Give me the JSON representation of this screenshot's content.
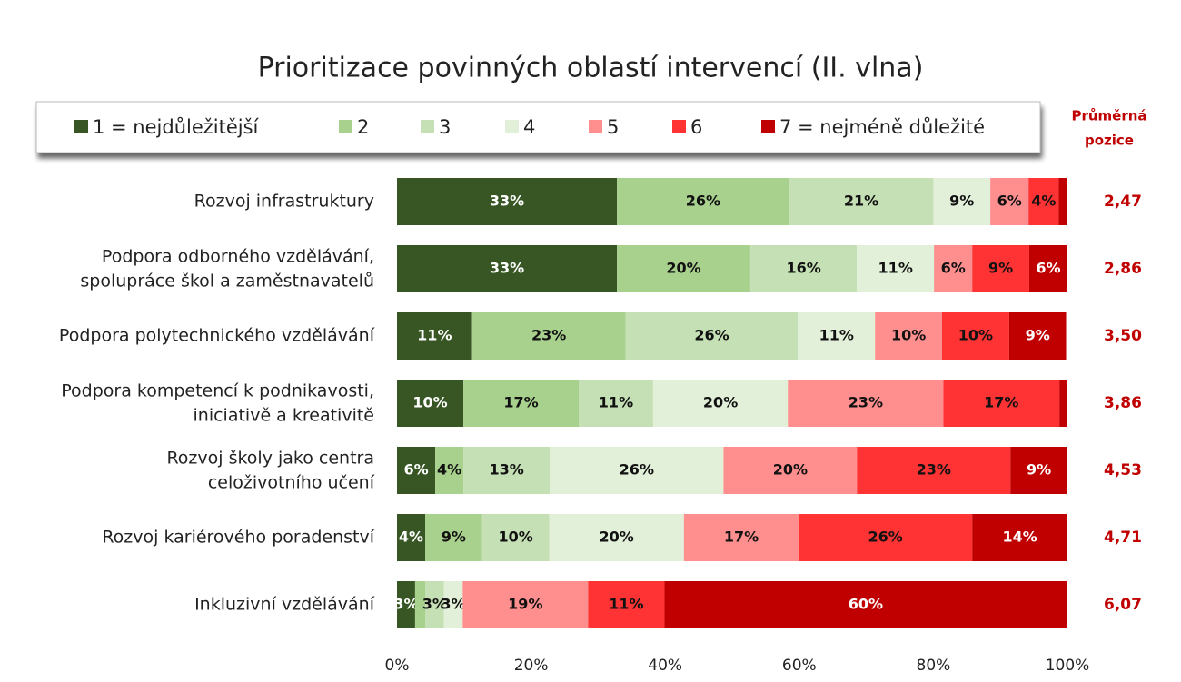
{
  "chart_data": {
    "type": "stacked_bar_horizontal",
    "title": "Prioritizace povinných oblastí intervencí (II. vlna)",
    "categories": [
      "Rozvoj infrastruktury",
      "Podpora odborného vzdělávání,\nspolupráce škol a zaměstnavatelů",
      "Podpora polytechnického vzdělávání",
      "Podpora kompetencí k podnikavosti,\niniciativě a kreativitě",
      "Rozvoj školy jako centra\nceloživotního učení",
      "Rozvoj kariérového poradenství",
      "Inkluzivní vzdělávání"
    ],
    "series": [
      {
        "name": "1 = nejdůležitější",
        "color": "#375623",
        "values": [
          32.8,
          32.8,
          11.2,
          9.9,
          5.7,
          4.2,
          2.7
        ],
        "value_labels": [
          "33%",
          "33%",
          "11%",
          "10%",
          "6%",
          "4%",
          "3%"
        ]
      },
      {
        "name": "2",
        "color": "#a9d18e",
        "values": [
          25.7,
          19.9,
          22.9,
          17.2,
          4.2,
          8.5,
          1.5
        ],
        "value_labels": [
          "26%",
          "20%",
          "23%",
          "17%",
          "4%",
          "9%",
          null
        ]
      },
      {
        "name": "3",
        "color": "#c5e0b4",
        "values": [
          21.5,
          15.9,
          25.7,
          11.1,
          12.9,
          10.0,
          2.8
        ],
        "value_labels": [
          "21%",
          "16%",
          "26%",
          "11%",
          "13%",
          "10%",
          "3%"
        ]
      },
      {
        "name": "4",
        "color": "#e2f0d9",
        "values": [
          8.5,
          11.5,
          11.5,
          20.1,
          25.9,
          20.1,
          2.8
        ],
        "value_labels": [
          "9%",
          "11%",
          "11%",
          "20%",
          "26%",
          "20%",
          "3%"
        ]
      },
      {
        "name": "5",
        "color": "#ff8f8f",
        "values": [
          5.7,
          5.7,
          10.0,
          23.2,
          19.9,
          17.1,
          18.7
        ],
        "value_labels": [
          "6%",
          "6%",
          "10%",
          "23%",
          "20%",
          "17%",
          "19%"
        ]
      },
      {
        "name": "6",
        "color": "#ff3333",
        "values": [
          4.5,
          8.5,
          10.0,
          17.3,
          22.9,
          25.9,
          11.4
        ],
        "value_labels": [
          "4%",
          "9%",
          "10%",
          "17%",
          "23%",
          "26%",
          "11%"
        ]
      },
      {
        "name": "7 = nejméně důležité",
        "color": "#c00000",
        "values": [
          1.3,
          5.7,
          8.5,
          1.2,
          8.5,
          14.2,
          60.0
        ],
        "value_labels": [
          null,
          "6%",
          "9%",
          null,
          "9%",
          "14%",
          "60%"
        ]
      }
    ],
    "average_title": "Průměrná\npozice",
    "average": [
      2.47,
      2.86,
      3.5,
      3.86,
      4.53,
      4.71,
      6.07
    ],
    "average_labels": [
      "2,47",
      "2,86",
      "3,50",
      "3,86",
      "4,53",
      "4,71",
      "6,07"
    ],
    "xlim": [
      0,
      100
    ],
    "xticks": [
      {
        "value": 0,
        "label": "0%"
      },
      {
        "value": 20,
        "label": "20%"
      },
      {
        "value": 40,
        "label": "40%"
      },
      {
        "value": 60,
        "label": "60%"
      },
      {
        "value": 80,
        "label": "80%"
      },
      {
        "value": 100,
        "label": "100%"
      }
    ],
    "legend": "top"
  }
}
